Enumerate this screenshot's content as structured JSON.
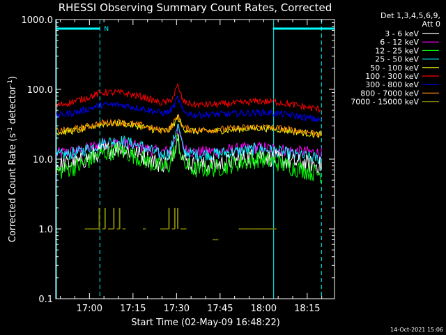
{
  "chart_data": {
    "type": "line",
    "title": "RHESSI Observing Summary Count Rates, Corrected",
    "xlabel": "Start Time (02-May-09 16:48:22)",
    "ylabel_main": "Corrected Count Rate (s",
    "ylabel_sup1": "-1",
    "ylabel_mid": " detector",
    "ylabel_sup2": "-1",
    "ylabel_end": ")",
    "yscale": "log",
    "ylim": [
      0.1,
      1000
    ],
    "xlim_minutes_after_start": [
      0,
      96
    ],
    "y_ticks": [
      "0.1",
      "1.0",
      "10.0",
      "100.0",
      "1000.0"
    ],
    "x_ticks": [
      {
        "label": "17:00",
        "minutes": 11.6
      },
      {
        "label": "17:15",
        "minutes": 26.6
      },
      {
        "label": "17:30",
        "minutes": 41.6
      },
      {
        "label": "17:45",
        "minutes": 56.6
      },
      {
        "label": "18:00",
        "minutes": 71.6
      },
      {
        "label": "18:15",
        "minutes": 86.6
      }
    ],
    "legend_header": [
      "Det 1,3,4,5,6,9,",
      "Att 0"
    ],
    "legend_position": "right",
    "timestamp": "14-Oct-2021 15:06",
    "night_marker_label": "N",
    "series": [
      {
        "name": "3 - 6 keV",
        "color": "#ffffff",
        "x": [
          0,
          8,
          16,
          22,
          30,
          36,
          39,
          40.5,
          42,
          44,
          48,
          56,
          64,
          70,
          76,
          82,
          88,
          92,
          96
        ],
        "y": [
          8,
          9,
          13,
          14.5,
          11,
          8.5,
          9,
          13,
          22,
          10,
          8,
          8.5,
          10,
          11.5,
          10,
          9,
          8.5,
          8,
          8
        ]
      },
      {
        "name": "6 - 12 keV",
        "color": "#ff00ff",
        "x": [
          0,
          8,
          16,
          22,
          30,
          36,
          39,
          40.5,
          42,
          44,
          48,
          56,
          64,
          70,
          76,
          82,
          88,
          92,
          96
        ],
        "y": [
          12,
          13,
          16.5,
          17,
          14.5,
          12.5,
          13,
          17,
          28,
          14,
          12.5,
          13,
          14,
          14.5,
          14,
          13,
          12.5,
          12,
          12
        ]
      },
      {
        "name": "12 - 25 keV",
        "color": "#00ff00",
        "x": [
          0,
          8,
          16,
          22,
          30,
          36,
          39,
          40.5,
          42,
          44,
          48,
          56,
          64,
          70,
          76,
          82,
          88,
          92,
          96
        ],
        "y": [
          6.5,
          8,
          12,
          13.5,
          10,
          7.5,
          8,
          12,
          19,
          8.5,
          7,
          7.5,
          9,
          10,
          9,
          7.5,
          6.5,
          6,
          5.5
        ]
      },
      {
        "name": "25 - 50 keV",
        "color": "#00ffff",
        "x": [
          0,
          8,
          16,
          22,
          30,
          36,
          39,
          40.5,
          42,
          44,
          48,
          56,
          64,
          70,
          76,
          82,
          88,
          92,
          96
        ],
        "y": [
          11,
          12.5,
          17,
          18.5,
          15,
          11.5,
          12,
          18,
          33,
          13,
          11.5,
          12,
          13,
          14,
          13,
          11.5,
          10.5,
          10,
          10
        ]
      },
      {
        "name": "50 - 100 keV",
        "color": "#ffff00",
        "x": [
          0,
          8,
          16,
          22,
          30,
          36,
          39,
          40.5,
          42,
          44,
          48,
          56,
          64,
          70,
          76,
          82,
          88,
          92,
          96
        ],
        "y": [
          24,
          26,
          32,
          33,
          29,
          25,
          26,
          31,
          40,
          27,
          25,
          25.5,
          27,
          28,
          27,
          25,
          23,
          22,
          22
        ]
      },
      {
        "name": "100 - 300 keV",
        "color": "#ff0000",
        "x": [
          0,
          8,
          16,
          22,
          30,
          36,
          39,
          40.5,
          42,
          44,
          48,
          56,
          64,
          70,
          76,
          82,
          88,
          92,
          96
        ],
        "y": [
          58,
          70,
          90,
          90,
          78,
          64,
          66,
          80,
          112,
          66,
          60,
          61,
          64,
          68,
          66,
          60,
          54,
          51,
          50
        ]
      },
      {
        "name": "300 - 800 keV",
        "color": "#0000ff",
        "x": [
          0,
          8,
          16,
          22,
          30,
          36,
          39,
          40.5,
          42,
          44,
          48,
          56,
          64,
          70,
          76,
          82,
          88,
          92,
          96
        ],
        "y": [
          42,
          48,
          60,
          60,
          53,
          46,
          47,
          56,
          75,
          47,
          43,
          44,
          45,
          47,
          45,
          42,
          38,
          36,
          35
        ]
      },
      {
        "name": "800 - 7000 keV",
        "color": "#ff8c00",
        "x": [
          0,
          8,
          16,
          22,
          30,
          36,
          39,
          40.5,
          42,
          44,
          48,
          56,
          64,
          70,
          76,
          82,
          88,
          92,
          96
        ],
        "y": [
          25,
          27.5,
          33,
          34,
          30,
          26,
          27,
          32,
          42,
          28,
          26,
          26.5,
          28,
          29,
          28,
          26,
          24,
          22.5,
          22
        ]
      },
      {
        "name": "7000 - 15000 keV",
        "color": "#808000",
        "x": [
          10,
          11,
          12,
          13,
          14,
          15,
          16,
          17,
          18,
          19,
          20,
          21,
          22,
          23,
          30,
          36,
          37,
          38,
          39,
          40,
          41,
          42,
          43,
          44,
          54,
          55,
          63,
          64,
          65,
          66,
          67,
          68,
          69,
          70,
          71,
          72,
          73,
          74,
          75
        ],
        "y": [
          1.0,
          1.0,
          1.0,
          1.0,
          1.0,
          2.0,
          1.0,
          2.0,
          1.0,
          1.0,
          2.0,
          1.0,
          2.0,
          1.0,
          1.0,
          1.0,
          1.0,
          1.0,
          2.0,
          1.0,
          2.0,
          2.0,
          1.0,
          1.0,
          0.7,
          0.7,
          1.0,
          1.0,
          1.0,
          1.0,
          1.0,
          1.0,
          1.0,
          1.0,
          1.0,
          1.0,
          1.0,
          1.0,
          1.0
        ]
      }
    ],
    "markers": {
      "night_bars_minutes": [
        [
          0,
          15.2
        ],
        [
          74.8,
          96
        ]
      ],
      "solid_cyan_lines_minutes": [
        0,
        74.8
      ],
      "dashed_cyan_lines_minutes": [
        15.2,
        91.5
      ]
    }
  }
}
